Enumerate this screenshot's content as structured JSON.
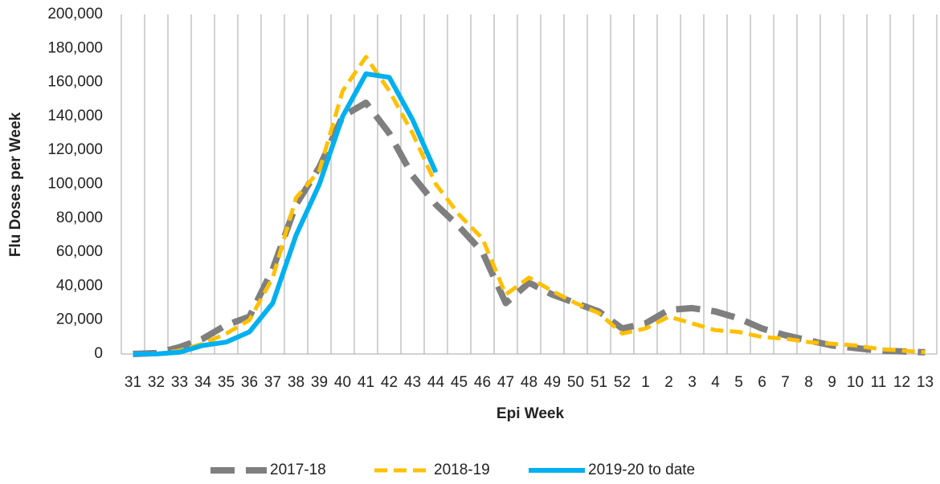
{
  "chart_data": {
    "type": "line",
    "x_label": "Epi Week",
    "y_label": "Flu Doses per Week",
    "categories": [
      "31",
      "32",
      "33",
      "34",
      "35",
      "36",
      "37",
      "38",
      "39",
      "40",
      "41",
      "42",
      "43",
      "44",
      "45",
      "46",
      "47",
      "48",
      "49",
      "50",
      "51",
      "52",
      "1",
      "2",
      "3",
      "4",
      "5",
      "6",
      "7",
      "8",
      "9",
      "10",
      "11",
      "12",
      "13"
    ],
    "series": [
      {
        "name": "2017-18",
        "color": "#7f7f7f",
        "style": "longdash",
        "values": [
          0,
          500,
          4000,
          9000,
          17000,
          22000,
          50000,
          88000,
          110000,
          140000,
          148000,
          130000,
          105000,
          88000,
          75000,
          60000,
          30000,
          42000,
          35000,
          30000,
          25000,
          15000,
          18000,
          26000,
          27000,
          25000,
          21000,
          15000,
          11000,
          8000,
          5000,
          3500,
          2000,
          1500,
          1000
        ]
      },
      {
        "name": "2018-19",
        "color": "#ffc000",
        "style": "dash",
        "values": [
          0,
          0,
          2000,
          6000,
          12000,
          20000,
          45000,
          92000,
          108000,
          155000,
          175000,
          155000,
          130000,
          100000,
          82000,
          68000,
          35000,
          45000,
          37000,
          30000,
          24000,
          12000,
          15000,
          22000,
          18000,
          14000,
          13000,
          10000,
          9000,
          7000,
          6000,
          5000,
          3000,
          2000,
          1000
        ]
      },
      {
        "name": "2019-20 to date",
        "color": "#00b0f0",
        "style": "solid",
        "values": [
          0,
          0,
          1000,
          5000,
          7000,
          13000,
          30000,
          70000,
          100000,
          140000,
          165000,
          163000,
          138000,
          107000,
          null,
          null,
          null,
          null,
          null,
          null,
          null,
          null,
          null,
          null,
          null,
          null,
          null,
          null,
          null,
          null,
          null,
          null,
          null,
          null,
          null
        ]
      }
    ],
    "ylim": [
      0,
      200000
    ],
    "yticks": [
      0,
      {
        "value": 20000,
        "label": "20,000"
      },
      {
        "value": 40000,
        "label": "40,000"
      },
      {
        "value": 60000,
        "label": "60,000"
      },
      {
        "value": 80000,
        "label": "80,000"
      },
      {
        "value": 100000,
        "label": "100,000"
      },
      {
        "value": 120000,
        "label": "120,000"
      },
      {
        "value": 140000,
        "label": "140,000"
      },
      {
        "value": 160000,
        "label": "160,000"
      },
      {
        "value": 180000,
        "label": "180,000"
      },
      {
        "value": 200000,
        "label": "200,000"
      }
    ],
    "grid": "vertical",
    "legend": "bottom"
  }
}
